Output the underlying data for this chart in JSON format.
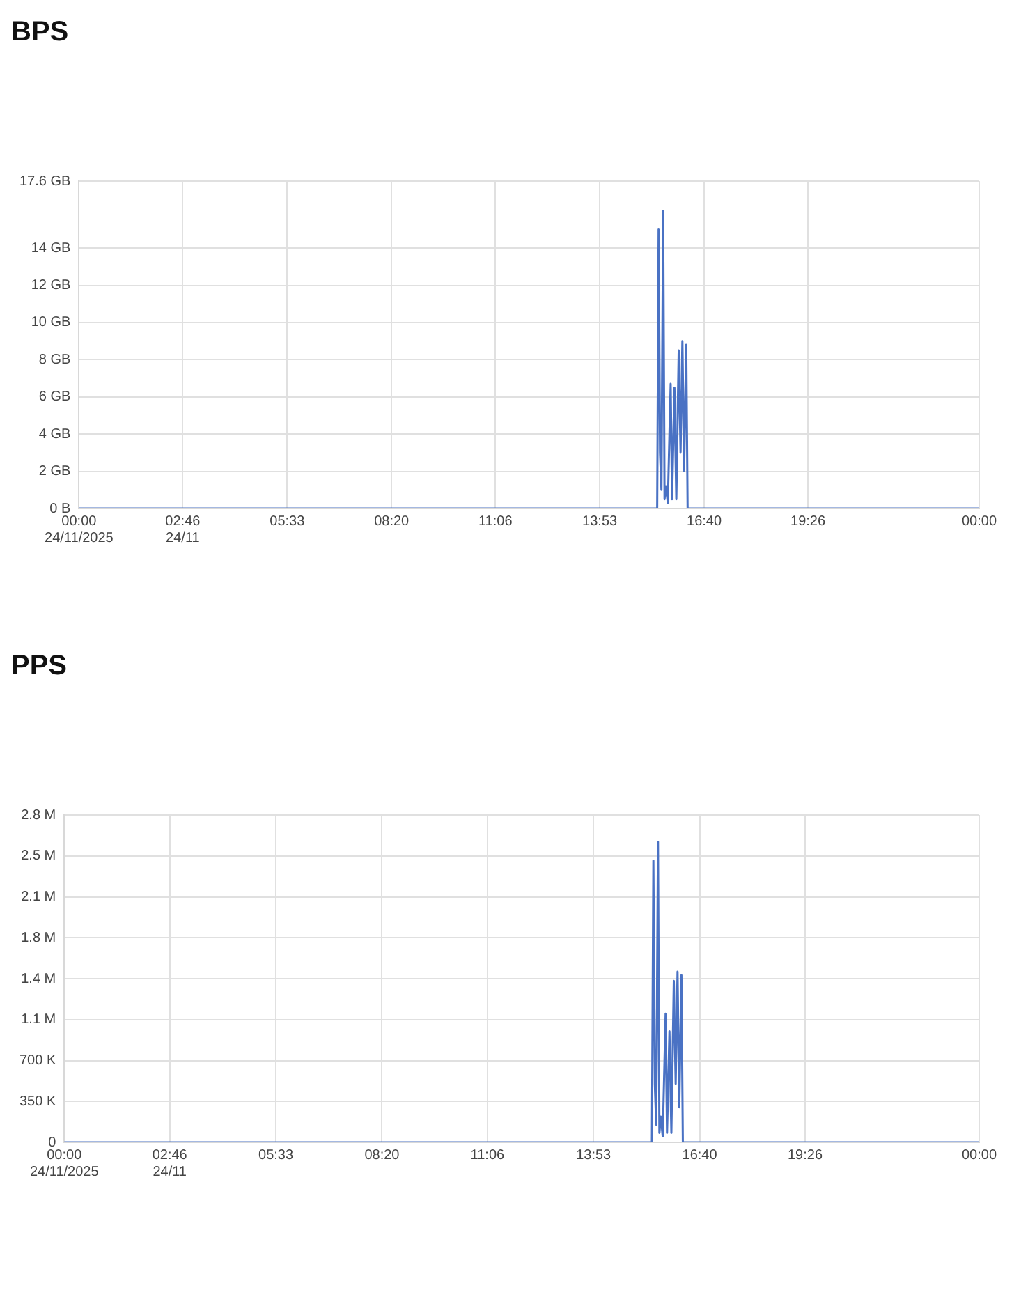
{
  "chart_data": [
    {
      "type": "line",
      "title": "BPS",
      "x": [
        0,
        15.415,
        15.453,
        15.491,
        15.528,
        15.574,
        15.611,
        15.649,
        15.698,
        15.774,
        15.811,
        15.875,
        15.925,
        15.989,
        16.038,
        16.087,
        16.132,
        16.189,
        16.226,
        24
      ],
      "series": [
        {
          "color": "#4a72c4",
          "values": [
            0,
            0,
            15,
            3,
            1,
            16,
            0.5,
            1.2,
            0.3,
            6.7,
            0.5,
            6.5,
            0.5,
            8.5,
            3,
            9.0,
            2,
            8.8,
            0,
            0
          ]
        }
      ],
      "xlim": [
        0,
        24
      ],
      "xticks": [
        {
          "value": 0,
          "label": "00:00\n24/11/2025"
        },
        {
          "value": 2.7667,
          "label": "02:46\n24/11"
        },
        {
          "value": 5.55,
          "label": "05:33"
        },
        {
          "value": 8.3333,
          "label": "08:20"
        },
        {
          "value": 11.1,
          "label": "11:06"
        },
        {
          "value": 13.8833,
          "label": "13:53"
        },
        {
          "value": 16.6667,
          "label": "16:40"
        },
        {
          "value": 19.4333,
          "label": "19:26"
        },
        {
          "value": 24,
          "label": "00:00"
        }
      ],
      "ylim": [
        0,
        17.6
      ],
      "yticks": [
        {
          "value": 0,
          "label": "0 B"
        },
        {
          "value": 2,
          "label": "2 GB"
        },
        {
          "value": 4,
          "label": "4 GB"
        },
        {
          "value": 6,
          "label": "6 GB"
        },
        {
          "value": 8,
          "label": "8 GB"
        },
        {
          "value": 10,
          "label": "10 GB"
        },
        {
          "value": 12,
          "label": "12 GB"
        },
        {
          "value": 14,
          "label": "14 GB"
        },
        {
          "value": 17.6,
          "label": "17.6 GB"
        }
      ],
      "grid": true
    },
    {
      "type": "line",
      "title": "PPS",
      "x": [
        0,
        15.415,
        15.453,
        15.491,
        15.528,
        15.574,
        15.611,
        15.649,
        15.698,
        15.774,
        15.811,
        15.875,
        15.925,
        15.989,
        16.038,
        16.087,
        16.132,
        16.189,
        16.226,
        24
      ],
      "series": [
        {
          "color": "#4a72c4",
          "values": [
            0,
            0,
            2410000,
            500000,
            150000,
            2570000,
            80000,
            220000,
            50000,
            1100000,
            80000,
            950000,
            80000,
            1380000,
            500000,
            1460000,
            300000,
            1430000,
            0,
            0
          ]
        }
      ],
      "xlim": [
        0,
        24
      ],
      "xticks": [
        {
          "value": 0,
          "label": "00:00\n24/11/2025"
        },
        {
          "value": 2.7667,
          "label": "02:46\n24/11"
        },
        {
          "value": 5.55,
          "label": "05:33"
        },
        {
          "value": 8.3333,
          "label": "08:20"
        },
        {
          "value": 11.1,
          "label": "11:06"
        },
        {
          "value": 13.8833,
          "label": "13:53"
        },
        {
          "value": 16.6667,
          "label": "16:40"
        },
        {
          "value": 19.4333,
          "label": "19:26"
        },
        {
          "value": 24,
          "label": "00:00"
        }
      ],
      "ylim": [
        0,
        2800000
      ],
      "yticks": [
        0,
        {
          "value": 350000,
          "label": "350 K"
        },
        {
          "value": 700000,
          "label": "700 K"
        },
        {
          "value": 1050000,
          "label": "1.1 M"
        },
        {
          "value": 1400000,
          "label": "1.4 M"
        },
        {
          "value": 1750000,
          "label": "1.8 M"
        },
        {
          "value": 2100000,
          "label": "2.1 M"
        },
        {
          "value": 2450000,
          "label": "2.5 M"
        },
        {
          "value": 2800000,
          "label": "2.8 M"
        }
      ],
      "grid": true
    }
  ]
}
